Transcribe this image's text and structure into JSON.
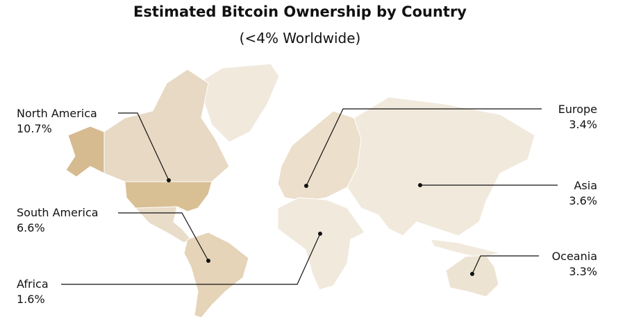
{
  "title": "Estimated Bitcoin Ownership by Country",
  "subtitle": "(<4% Worldwide)",
  "regions": [
    {
      "name": "North America",
      "value": "10.7%"
    },
    {
      "name": "South America",
      "value": "6.6%"
    },
    {
      "name": "Africa",
      "value": "1.6%"
    },
    {
      "name": "Europe",
      "value": "3.4%"
    },
    {
      "name": "Asia",
      "value": "3.6%"
    },
    {
      "name": "Oceania",
      "value": "3.3%"
    }
  ]
}
